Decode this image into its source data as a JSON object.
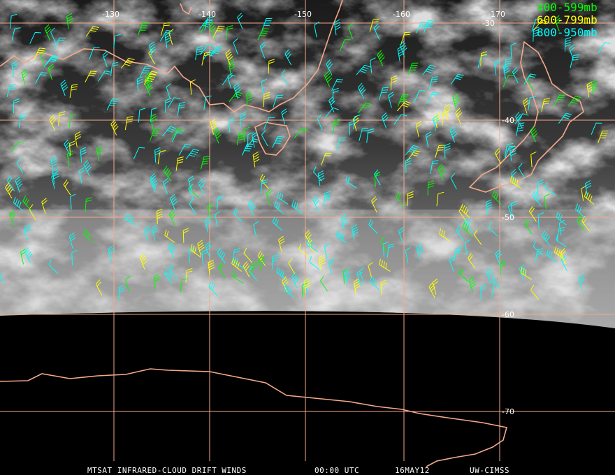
{
  "map": {
    "longitude_labels": [
      "-130",
      "-140",
      "-150",
      "-160",
      "-170"
    ],
    "latitude_labels": [
      "-30",
      "-40",
      "-50",
      "-60",
      "-70"
    ],
    "legend": [
      {
        "label": "400-599mb",
        "color": "#00ff00"
      },
      {
        "label": "600-799mb",
        "color": "#ffff00"
      },
      {
        "label": "800-950mb",
        "color": "#00ffff"
      }
    ],
    "footer": {
      "product": "MTSAT INFRARED-CLOUD DRIFT WINDS",
      "time": "00:00 UTC",
      "date": "16MAY12",
      "source": "UW-CIMSS"
    }
  }
}
